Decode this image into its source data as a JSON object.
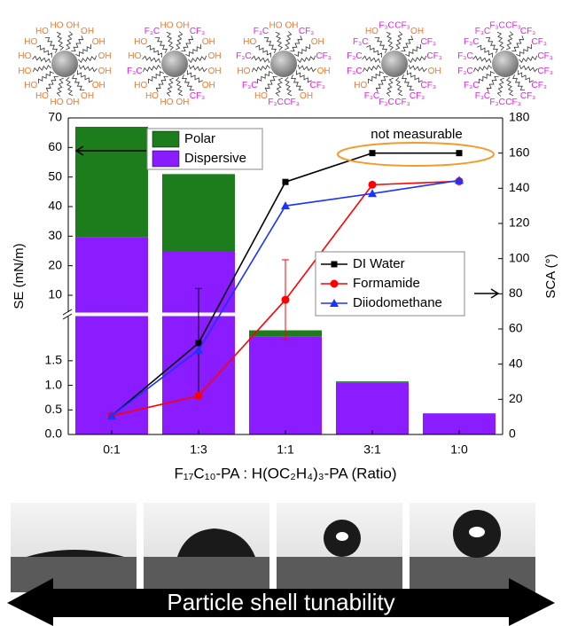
{
  "particles": [
    {
      "labels": [
        "OH",
        "OH",
        "OH",
        "OH",
        "OH",
        "OH",
        "OH",
        "OH",
        "HO",
        "HO",
        "HO",
        "HO",
        "HO",
        "HO",
        "HO",
        "HO"
      ]
    },
    {
      "labels": [
        "OH",
        "CF₃",
        "OH",
        "OH",
        "OH",
        "OH",
        "CF₃",
        "OH",
        "HO",
        "HO",
        "HO",
        "F₃C",
        "HO",
        "HO",
        "F₃C",
        "HO"
      ]
    },
    {
      "labels": [
        "OH",
        "CF₃",
        "OH",
        "CF₃",
        "OH",
        "CF₃",
        "OH",
        "CF₃",
        "F₃C",
        "HO",
        "F₃C",
        "HO",
        "F₃C",
        "HO",
        "F₃C",
        "HO"
      ]
    },
    {
      "labels": [
        "CF₃",
        "OH",
        "CF₃",
        "CF₃",
        "OH",
        "CF₃",
        "CF₃",
        "CF₃",
        "F₃C",
        "F₃C",
        "HO",
        "F₃C",
        "F₃C",
        "F₃C",
        "HO",
        "F₃C"
      ]
    },
    {
      "labels": [
        "CF₃",
        "CF₃",
        "CF₃",
        "CF₃",
        "CF₃",
        "CF₃",
        "CF₃",
        "CF₃",
        "F₃C",
        "F₃C",
        "F₃C",
        "F₃C",
        "F₃C",
        "F₃C",
        "F₃C",
        "F₃C"
      ]
    }
  ],
  "chart_data": {
    "type": "bar",
    "categories": [
      "0:1",
      "1:3",
      "1:1",
      "3:1",
      "1:0"
    ],
    "x_label": "F₁₇C₁₀-PA : H(OC₂H₄)₃-PA (Ratio)",
    "y_label": "SE (mN/m)",
    "y2_label": "SCA (°)",
    "y_segments": [
      {
        "ylim": [
          0,
          2.4
        ],
        "yticks": [
          {
            "value": 0,
            "label": "0.0"
          },
          0.5,
          {
            "value": 1,
            "label": "1.0"
          },
          1.5
        ]
      },
      {
        "ylim": [
          4.3,
          70
        ],
        "yticks": [
          10,
          20,
          30,
          40,
          50,
          60,
          70
        ]
      }
    ],
    "y2lim": [
      0,
      180
    ],
    "y2ticks": [
      0,
      20,
      40,
      60,
      80,
      100,
      120,
      140,
      160,
      180
    ],
    "annotation": "not measurable",
    "series": [
      {
        "name": "Dispersive",
        "color": "#8b1cff",
        "values": [
          29.7,
          25,
          2.0,
          1.05,
          0.43
        ]
      },
      {
        "name": "Polar",
        "color": "#1d7d1d",
        "values": [
          37.3,
          26,
          0.12,
          0.03,
          0
        ]
      },
      {
        "name": "DI Water",
        "type": "line",
        "axis": "y2",
        "marker": "square",
        "color": "#000000",
        "values": [
          10.6,
          52,
          143.6,
          160,
          160
        ],
        "errors": [
          null,
          31,
          null,
          null,
          null
        ]
      },
      {
        "name": "Formamide",
        "type": "line",
        "axis": "y2",
        "marker": "circle",
        "color": "#ff0000",
        "values": [
          10.6,
          22,
          76.6,
          142,
          144
        ],
        "errors": [
          null,
          null,
          22.7,
          null,
          null
        ]
      },
      {
        "name": "Diiodomethane",
        "type": "line",
        "axis": "y2",
        "marker": "triangle",
        "color": "#1a33ff",
        "values": [
          10.6,
          48,
          130,
          137,
          144.5
        ],
        "errors": [
          null,
          null,
          null,
          null,
          null
        ]
      }
    ]
  },
  "arrow_label": "Particle shell tunability"
}
